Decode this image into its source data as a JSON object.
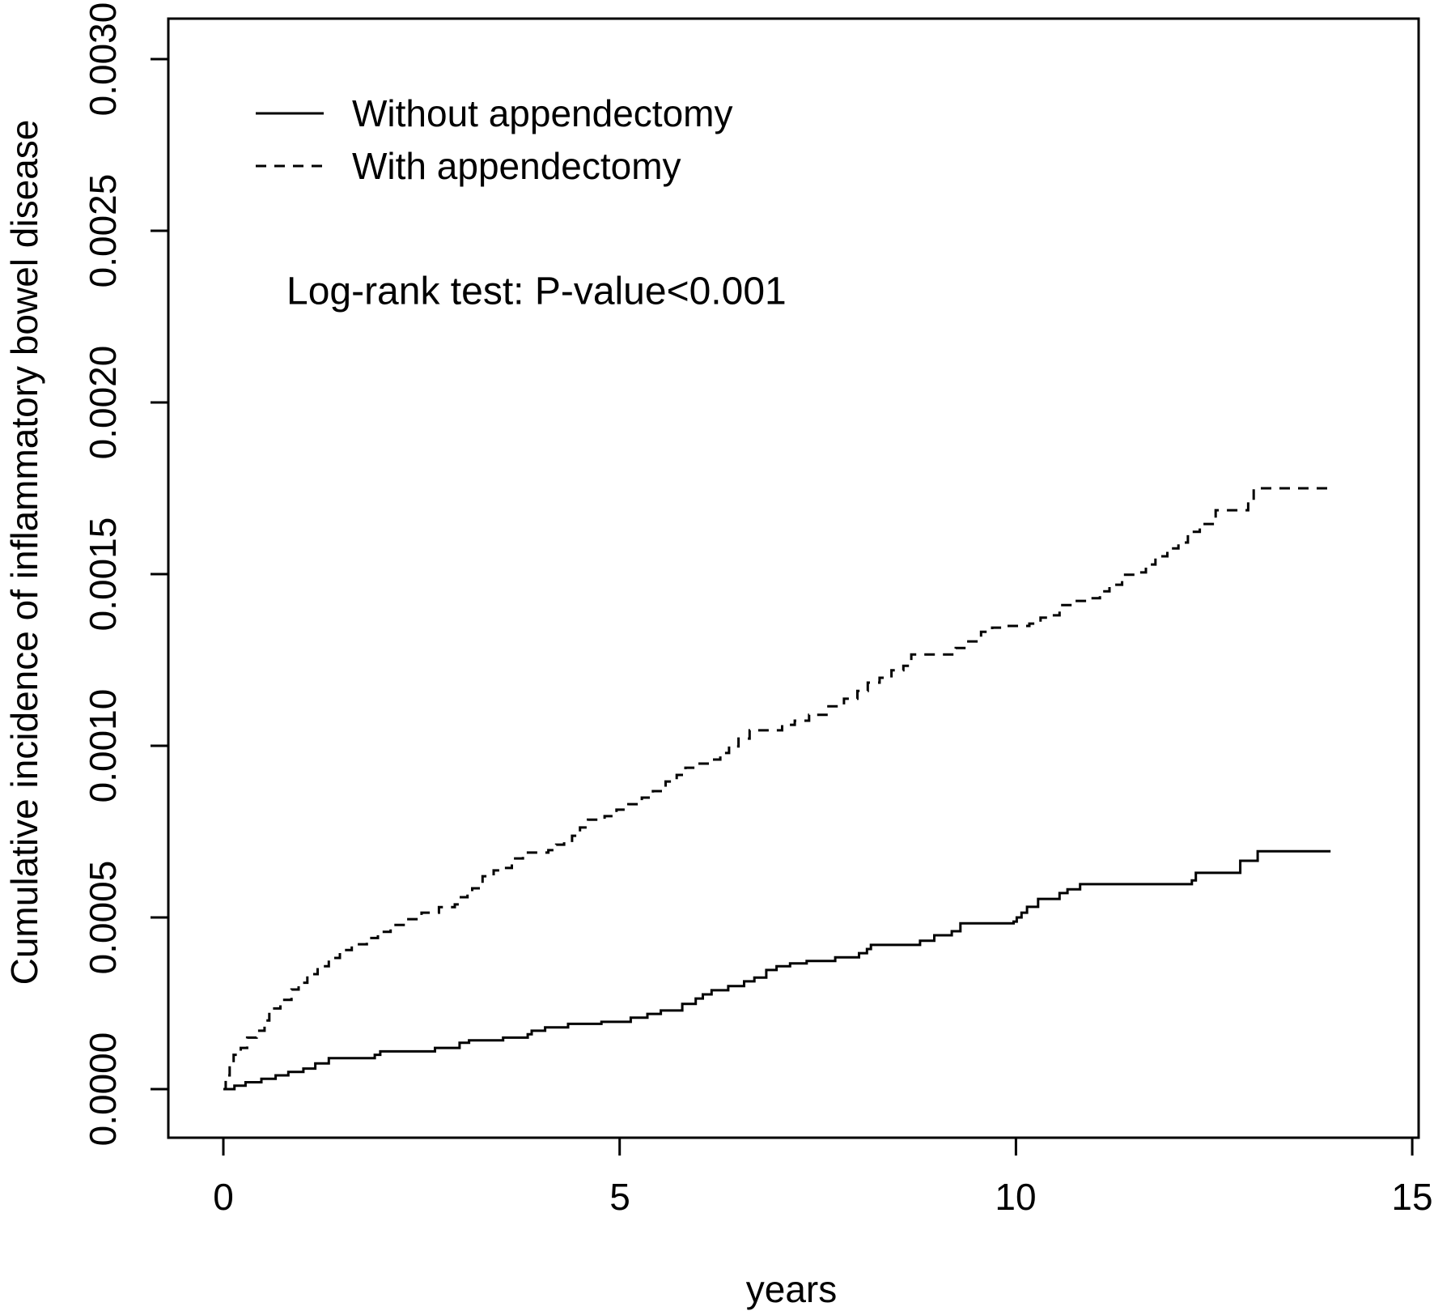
{
  "figure": {
    "background": "#ffffff",
    "annotation": "Log-rank test: P-value<0.001",
    "x_axis_title": "years",
    "y_axis_title": "Cumulative incidence of inflammatory bowel disease",
    "legend": [
      {
        "label": "Without appendectomy",
        "style": "solid"
      },
      {
        "label": "With appendectomy",
        "style": "dashed"
      }
    ]
  },
  "chart_data": {
    "type": "line",
    "subtype": "step-cumulative-incidence",
    "title": "",
    "xlabel": "years",
    "ylabel": "Cumulative incidence of inflammatory bowel disease",
    "xlim": [
      0,
      15
    ],
    "ylim": [
      0,
      0.003
    ],
    "grid": false,
    "legend_position": "top-left-inside",
    "annotation": "Log-rank test: P-value<0.001",
    "line_color": "#000000",
    "axis_color": "#000000",
    "xtick_values": [
      0,
      5,
      10,
      15
    ],
    "xtick_labels": [
      "0",
      "5",
      "10",
      "15"
    ],
    "ytick_values": [
      0,
      0.0005,
      0.001,
      0.0015,
      0.002,
      0.0025,
      0.003
    ],
    "ytick_labels": [
      "0.0000",
      "0.0005",
      "0.0010",
      "0.0015",
      "0.0020",
      "0.0025",
      "0.0030"
    ],
    "series": [
      {
        "name": "Without appendectomy",
        "line_style": "solid",
        "points": [
          [
            0,
            0
          ],
          [
            0.14,
            1e-05
          ],
          [
            0.28,
            2e-05
          ],
          [
            0.48,
            3e-05
          ],
          [
            0.66,
            4e-05
          ],
          [
            0.82,
            5e-05
          ],
          [
            1.01,
            6e-05
          ],
          [
            1.16,
            7.5e-05
          ],
          [
            1.33,
            9e-05
          ],
          [
            1.91,
            0.0001
          ],
          [
            1.98,
            0.00011
          ],
          [
            2.67,
            0.00012
          ],
          [
            2.98,
            0.000135
          ],
          [
            3.1,
            0.000142
          ],
          [
            3.53,
            0.00015
          ],
          [
            3.84,
            0.00016
          ],
          [
            3.89,
            0.00017
          ],
          [
            4.06,
            0.00018
          ],
          [
            4.35,
            0.00019
          ],
          [
            4.77,
            0.000196
          ],
          [
            5.14,
            0.000208
          ],
          [
            5.35,
            0.000219
          ],
          [
            5.52,
            0.000229
          ],
          [
            5.79,
            0.000248
          ],
          [
            5.96,
            0.000264
          ],
          [
            6.05,
            0.000276
          ],
          [
            6.16,
            0.000288
          ],
          [
            6.37,
            0.0003
          ],
          [
            6.57,
            0.000314
          ],
          [
            6.7,
            0.000325
          ],
          [
            6.85,
            0.000347
          ],
          [
            6.98,
            0.000358
          ],
          [
            7.15,
            0.000366
          ],
          [
            7.36,
            0.000373
          ],
          [
            7.72,
            0.000384
          ],
          [
            8.02,
            0.000396
          ],
          [
            8.12,
            0.000408
          ],
          [
            8.17,
            0.00042
          ],
          [
            8.79,
            0.000432
          ],
          [
            8.97,
            0.000448
          ],
          [
            9.19,
            0.00046
          ],
          [
            9.3,
            0.000483
          ],
          [
            9.97,
            0.000488
          ],
          [
            10.01,
            0.0005
          ],
          [
            10.07,
            0.000514
          ],
          [
            10.14,
            0.000531
          ],
          [
            10.28,
            0.000554
          ],
          [
            10.55,
            0.000571
          ],
          [
            10.65,
            0.000582
          ],
          [
            10.81,
            0.000597
          ],
          [
            12.22,
            0.000608
          ],
          [
            12.27,
            0.00063
          ],
          [
            12.83,
            0.000665
          ],
          [
            13.05,
            0.000693
          ],
          [
            13.97,
            0.000693
          ]
        ]
      },
      {
        "name": "With appendectomy",
        "line_style": "dashed",
        "points": [
          [
            0,
            0
          ],
          [
            0.03,
            4e-05
          ],
          [
            0.08,
            7.5e-05
          ],
          [
            0.13,
            0.0001
          ],
          [
            0.22,
            0.00012
          ],
          [
            0.3,
            0.00015
          ],
          [
            0.42,
            0.00017
          ],
          [
            0.52,
            0.0002
          ],
          [
            0.58,
            0.000235
          ],
          [
            0.72,
            0.00026
          ],
          [
            0.86,
            0.00029
          ],
          [
            0.95,
            0.00031
          ],
          [
            1.06,
            0.000335
          ],
          [
            1.19,
            0.000358
          ],
          [
            1.33,
            0.000382
          ],
          [
            1.47,
            0.000405
          ],
          [
            1.62,
            0.000422
          ],
          [
            1.81,
            0.00044
          ],
          [
            1.95,
            0.000458
          ],
          [
            2.11,
            0.000478
          ],
          [
            2.3,
            0.000495
          ],
          [
            2.5,
            0.000514
          ],
          [
            2.72,
            0.00053
          ],
          [
            2.92,
            0.000538
          ],
          [
            2.98,
            0.000559
          ],
          [
            3.08,
            0.000573
          ],
          [
            3.14,
            0.000585
          ],
          [
            3.27,
            0.00062
          ],
          [
            3.41,
            0.000637
          ],
          [
            3.51,
            0.000644
          ],
          [
            3.64,
            0.000672
          ],
          [
            3.78,
            0.000689
          ],
          [
            4.1,
            0.000696
          ],
          [
            4.2,
            0.000712
          ],
          [
            4.3,
            0.000719
          ],
          [
            4.4,
            0.000738
          ],
          [
            4.5,
            0.000762
          ],
          [
            4.6,
            0.000785
          ],
          [
            4.81,
            0.000795
          ],
          [
            4.96,
            0.000814
          ],
          [
            5.11,
            0.00083
          ],
          [
            5.28,
            0.000849
          ],
          [
            5.42,
            0.000868
          ],
          [
            5.58,
            0.000896
          ],
          [
            5.72,
            0.000915
          ],
          [
            5.83,
            0.000936
          ],
          [
            5.99,
            0.000948
          ],
          [
            6.16,
            0.00096
          ],
          [
            6.27,
            0.000979
          ],
          [
            6.38,
            0.000998
          ],
          [
            6.5,
            0.001021
          ],
          [
            6.64,
            0.001045
          ],
          [
            7.05,
            0.001061
          ],
          [
            7.21,
            0.001073
          ],
          [
            7.39,
            0.00109
          ],
          [
            7.61,
            0.001115
          ],
          [
            7.83,
            0.001137
          ],
          [
            8.0,
            0.00116
          ],
          [
            8.13,
            0.001184
          ],
          [
            8.28,
            0.001198
          ],
          [
            8.43,
            0.00122
          ],
          [
            8.58,
            0.001233
          ],
          [
            8.68,
            0.001266
          ],
          [
            9.24,
            0.001285
          ],
          [
            9.4,
            0.001304
          ],
          [
            9.56,
            0.001332
          ],
          [
            9.7,
            0.001344
          ],
          [
            9.87,
            0.001349
          ],
          [
            10.17,
            0.001356
          ],
          [
            10.31,
            0.001373
          ],
          [
            10.45,
            0.00138
          ],
          [
            10.55,
            0.00141
          ],
          [
            10.73,
            0.001422
          ],
          [
            10.93,
            0.00143
          ],
          [
            11.06,
            0.00145
          ],
          [
            11.18,
            0.001469
          ],
          [
            11.34,
            0.001498
          ],
          [
            11.5,
            0.001505
          ],
          [
            11.64,
            0.001528
          ],
          [
            11.76,
            0.001552
          ],
          [
            11.91,
            0.001575
          ],
          [
            12.05,
            0.001592
          ],
          [
            12.17,
            0.001623
          ],
          [
            12.32,
            0.001646
          ],
          [
            12.52,
            0.001686
          ],
          [
            12.93,
            0.00171
          ],
          [
            13.0,
            0.00175
          ],
          [
            13.95,
            0.00175
          ]
        ]
      }
    ]
  }
}
